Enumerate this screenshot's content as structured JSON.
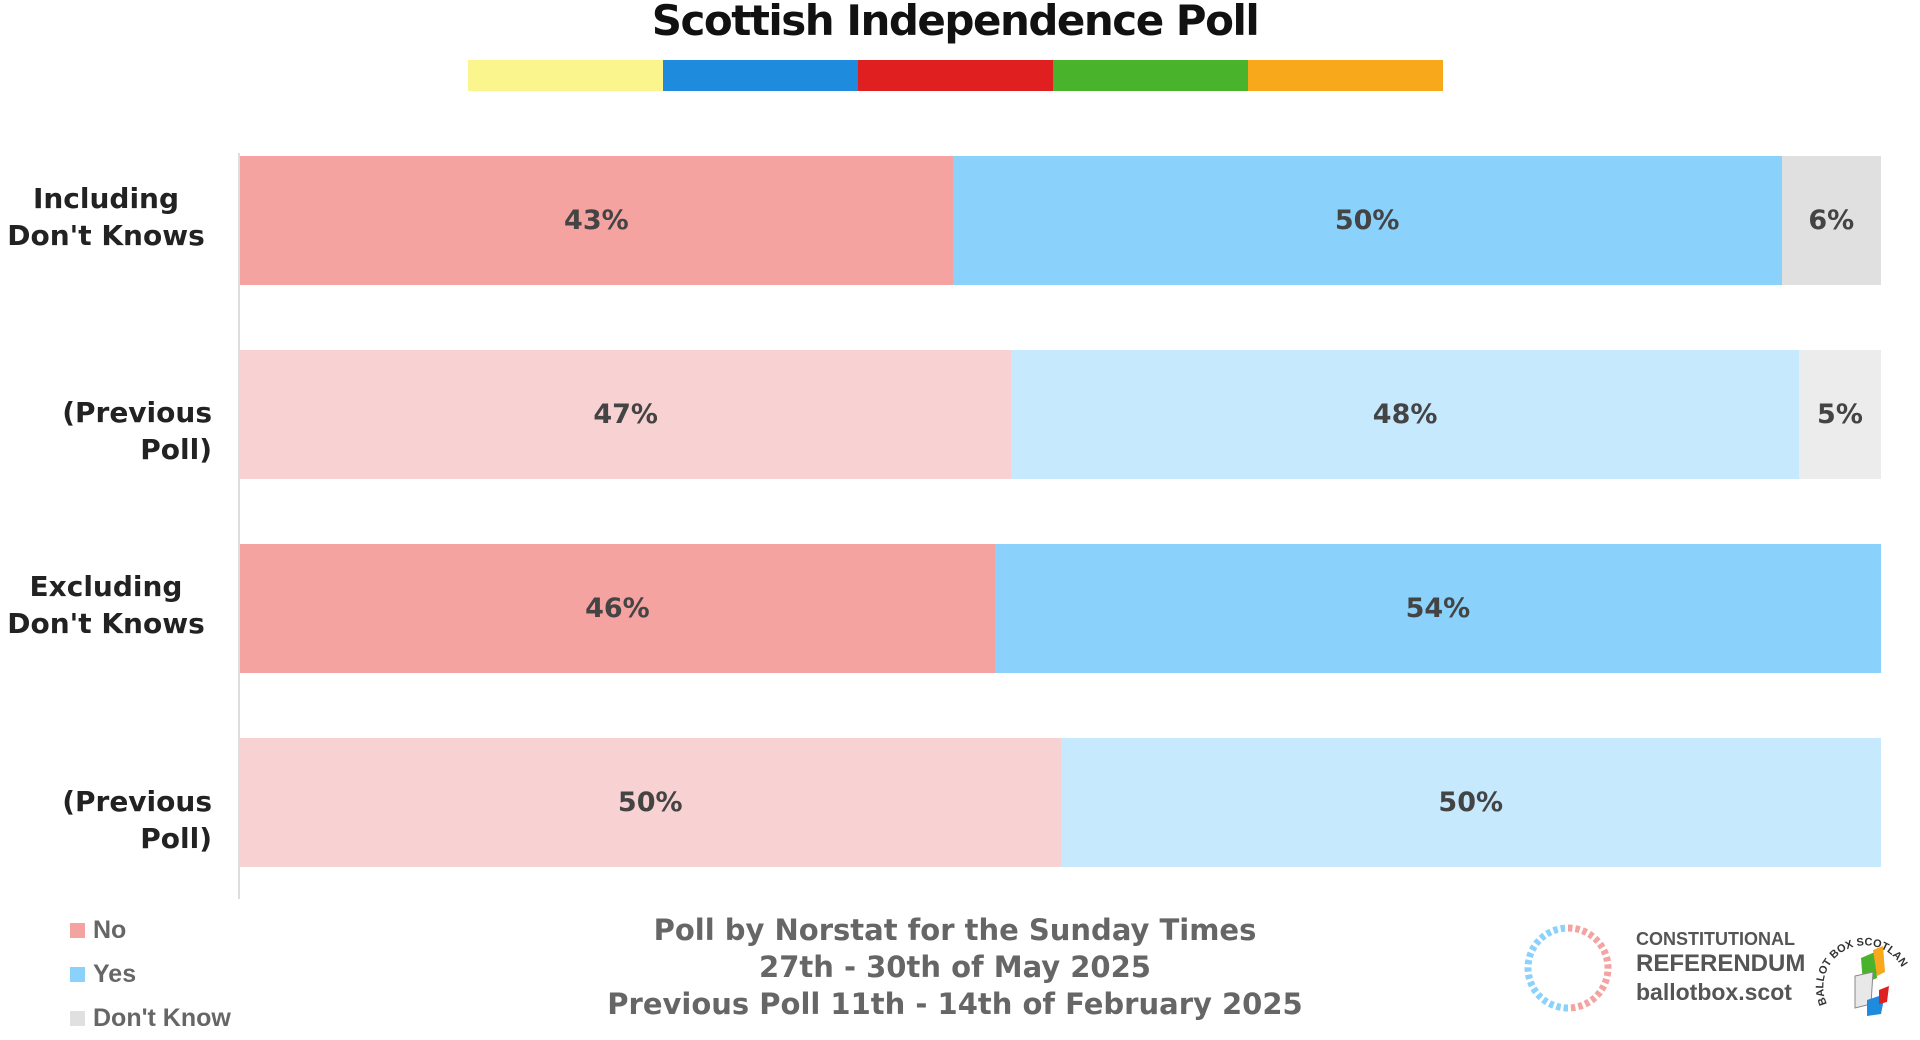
{
  "title": "Scottish Independence Poll",
  "stripe_colors": [
    "#fbf58d",
    "#1e8bdc",
    "#e02020",
    "#49b32b",
    "#f7a81b"
  ],
  "colors": {
    "no": "#f4a3a1",
    "no_prev": "#f8d2d3",
    "yes": "#8ad2fc",
    "yes_prev": "#c6e9fd",
    "dk": "#e0e0e0",
    "dk_prev": "#ececec"
  },
  "chart_data": {
    "type": "bar",
    "orientation": "horizontal",
    "stacked": true,
    "categories": [
      "Including Don't Knows",
      "(Previous Poll)",
      "Excluding Don't Knows",
      "(Previous Poll)"
    ],
    "series": [
      {
        "name": "No",
        "values": [
          43,
          47,
          46,
          50
        ],
        "labels": [
          "43%",
          "47%",
          "46%",
          "50%"
        ]
      },
      {
        "name": "Yes",
        "values": [
          50,
          48,
          54,
          50
        ],
        "labels": [
          "50%",
          "48%",
          "54%",
          "50%"
        ]
      },
      {
        "name": "Don't Know",
        "values": [
          6,
          5,
          0,
          0
        ],
        "labels": [
          "6%",
          "5%",
          "",
          ""
        ]
      }
    ],
    "legend": [
      "No",
      "Yes",
      "Don't Know"
    ],
    "legend_position": "bottom-left",
    "grid": false
  },
  "row_labels": {
    "row1_line1": "Including",
    "row1_line2": "Don't Knows",
    "row2": "(Previous Poll)",
    "row3_line1": "Excluding",
    "row3_line2": "Don't Knows",
    "row4": "(Previous Poll)"
  },
  "legend": {
    "no": "No",
    "yes": "Yes",
    "dk": "Don't Know"
  },
  "footer": {
    "line1": "Poll by Norstat for the Sunday Times",
    "line2": "27th - 30th of May 2025",
    "line3": "Previous Poll 11th - 14th of February 2025"
  },
  "logo": {
    "line1": "CONSTITUTIONAL",
    "line2": "REFERENDUM",
    "line3": "ballotbox.scot",
    "badge_text": "BALLOT BOX SCOTLAND"
  }
}
